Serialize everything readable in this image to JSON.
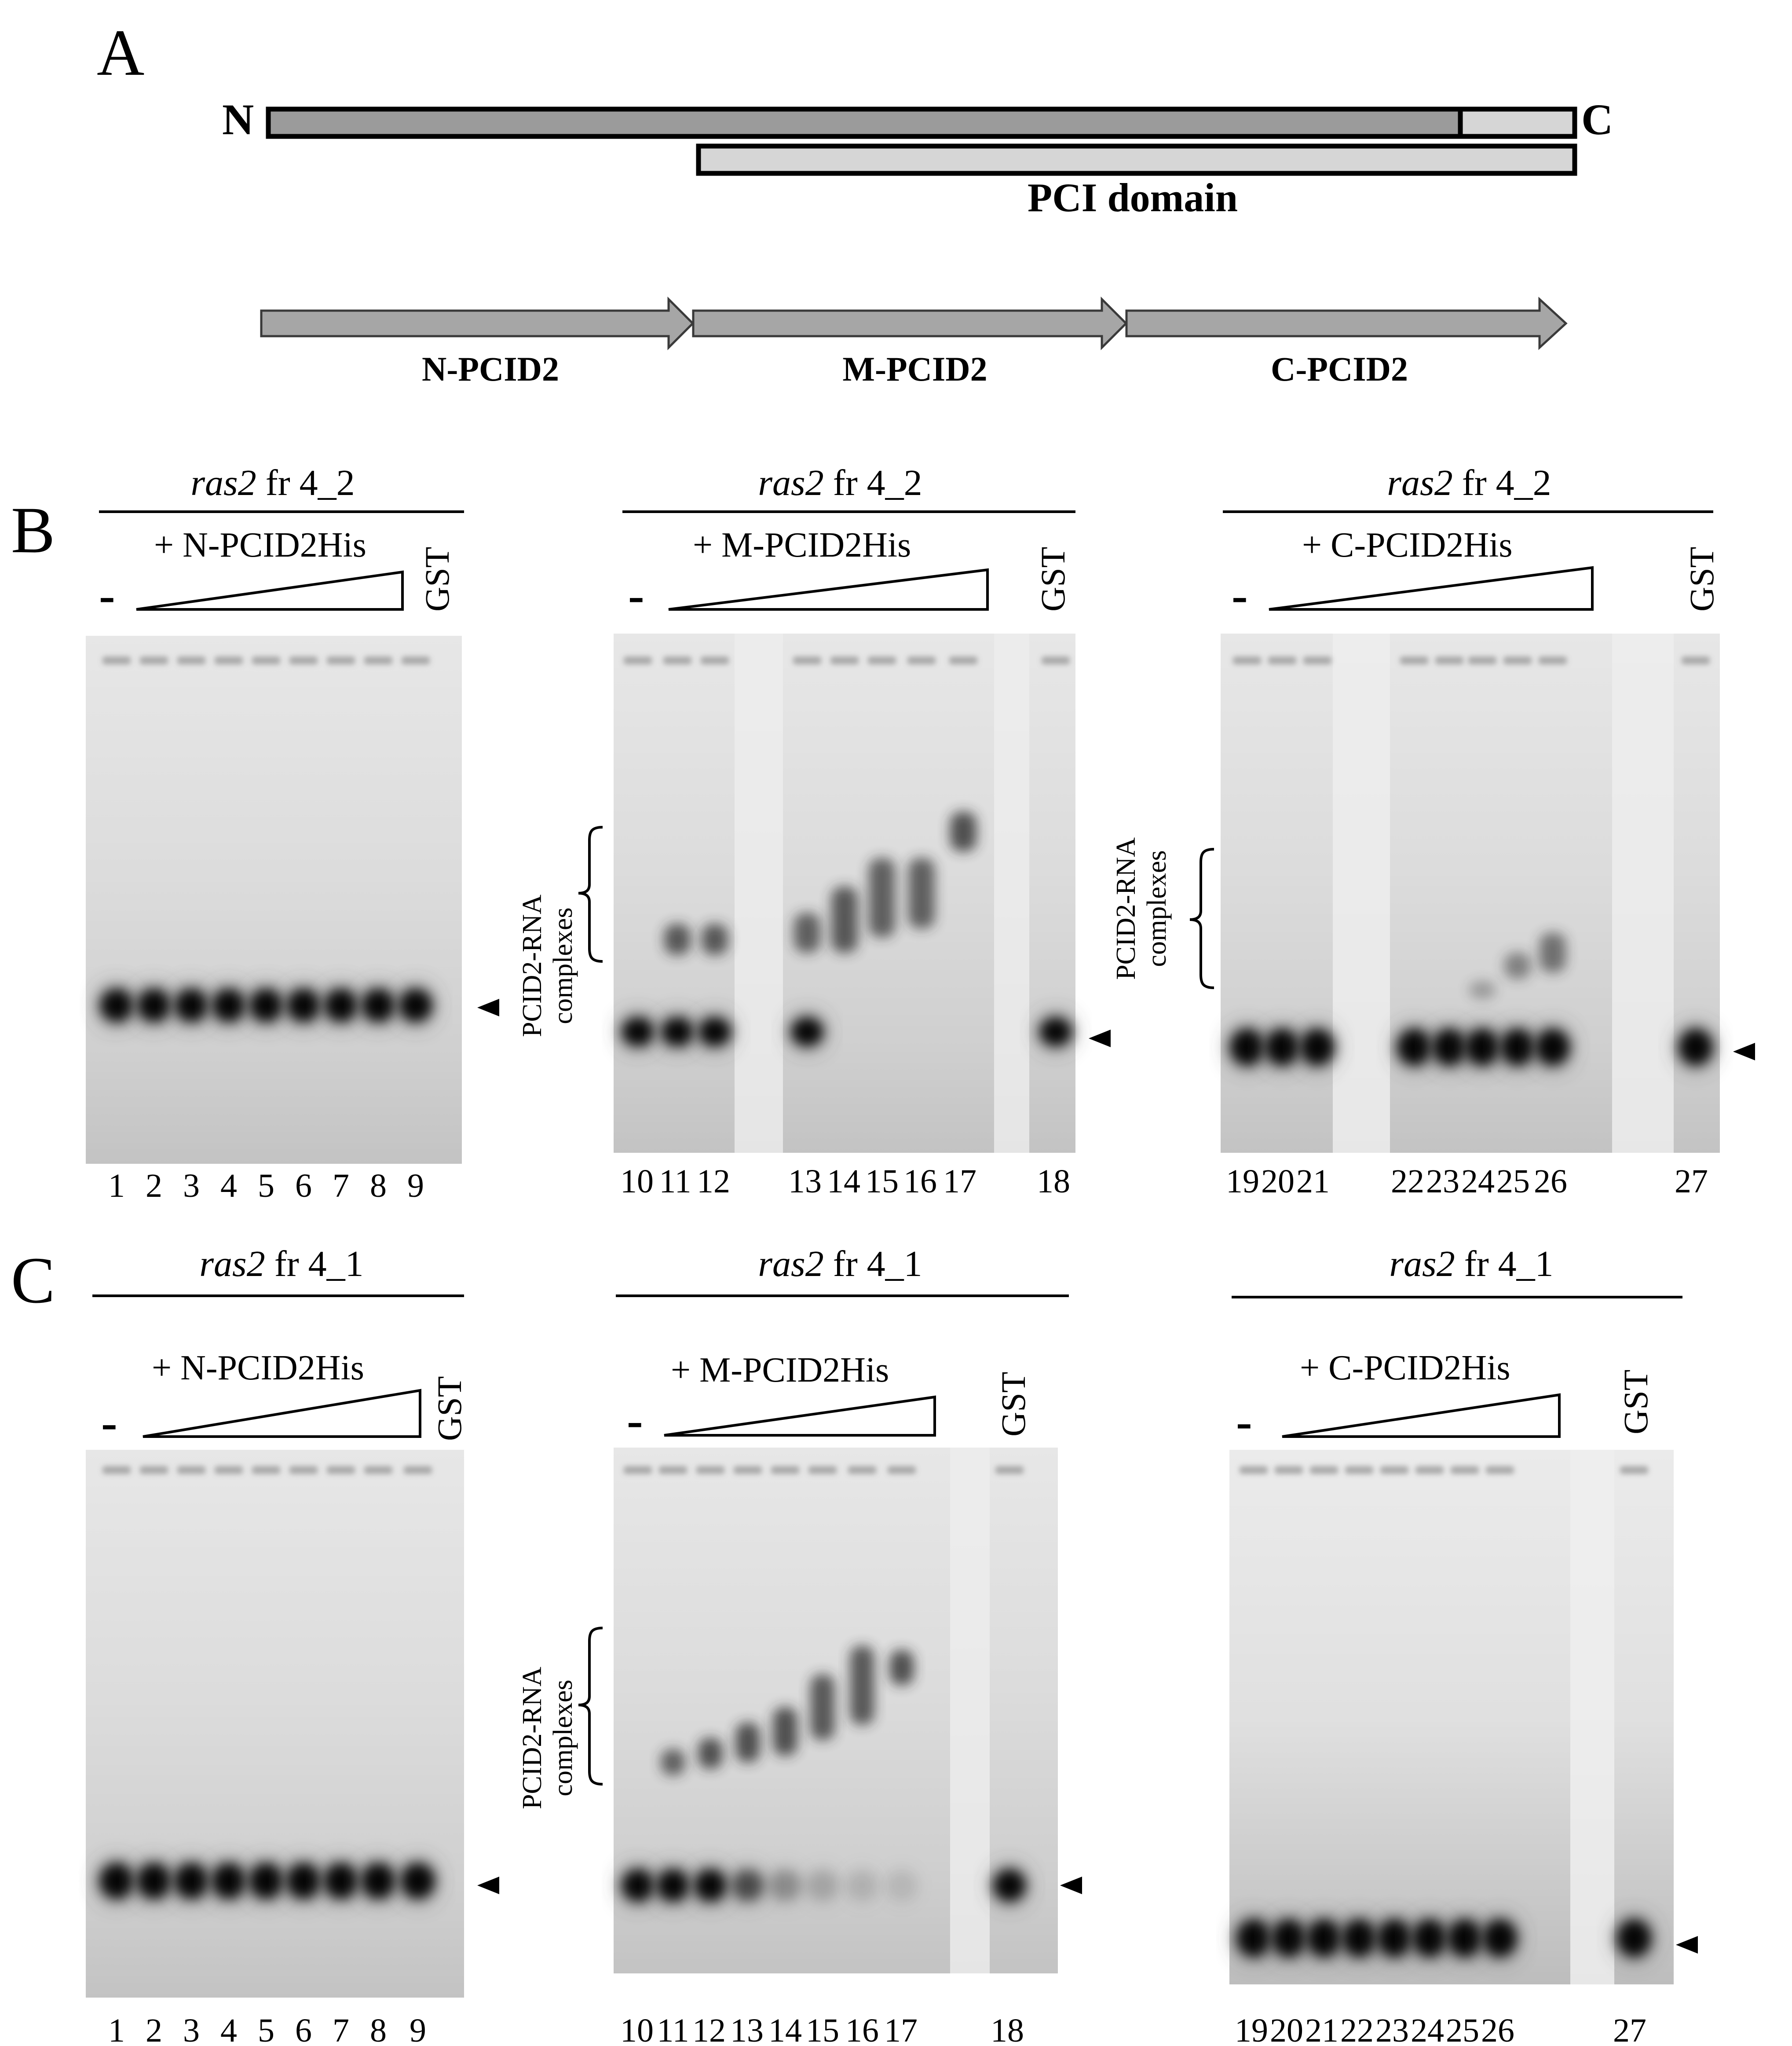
{
  "panel_a": {
    "letter": "A",
    "n_terminus": "N",
    "c_terminus": "C",
    "domain_label": "PCI domain",
    "fragments": [
      "N-PCID2",
      "M-PCID2",
      "C-PCID2"
    ]
  },
  "panel_b": {
    "letter": "B",
    "gels": [
      {
        "rna_italic": "ras2",
        "rna_rest": " fr 4_2",
        "protein": "+ N-PCID2His",
        "minus": "-",
        "control": "GST",
        "lanes": [
          "1",
          "2",
          "3",
          "4",
          "5",
          "6",
          "7",
          "8",
          "9"
        ]
      },
      {
        "rna_italic": "ras2",
        "rna_rest": " fr 4_2",
        "protein": "+ M-PCID2His",
        "minus": "-",
        "control": "GST",
        "lanes": [
          "10",
          "11",
          "12",
          "13",
          "14",
          "15",
          "16",
          "17",
          "18"
        ],
        "complex_label": [
          "PCID2-RNA",
          "complexes"
        ]
      },
      {
        "rna_italic": "ras2",
        "rna_rest": " fr 4_2",
        "protein": "+ C-PCID2His",
        "minus": "-",
        "control": "GST",
        "lanes": [
          "19",
          "20",
          "21",
          "22",
          "23",
          "24",
          "25",
          "26",
          "27"
        ],
        "complex_label": [
          "PCID2-RNA",
          "complexes"
        ]
      }
    ]
  },
  "panel_c": {
    "letter": "C",
    "gels": [
      {
        "rna_italic": "ras2",
        "rna_rest": " fr 4_1",
        "protein": "+ N-PCID2His",
        "minus": "-",
        "control": "GST",
        "lanes": [
          "1",
          "2",
          "3",
          "4",
          "5",
          "6",
          "7",
          "8",
          "9"
        ]
      },
      {
        "rna_italic": "ras2",
        "rna_rest": " fr 4_1",
        "protein": "+ M-PCID2His",
        "minus": "-",
        "control": "GST",
        "lanes": [
          "10",
          "11",
          "12",
          "13",
          "14",
          "15",
          "16",
          "17",
          "18"
        ],
        "complex_label": [
          "PCID2-RNA",
          "complexes"
        ]
      },
      {
        "rna_italic": "ras2",
        "rna_rest": " fr 4_1",
        "protein": "+ C-PCID2His",
        "minus": "-",
        "control": "GST",
        "lanes": [
          "19",
          "20",
          "21",
          "22",
          "23",
          "24",
          "25",
          "26",
          "27"
        ]
      }
    ]
  }
}
